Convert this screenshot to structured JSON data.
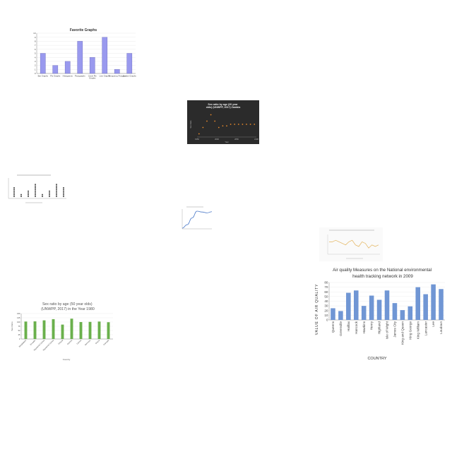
{
  "chart_data": [
    {
      "type": "bar",
      "title": "Favorite Graphs",
      "categories": [
        "Bar Graphs",
        "Pie Graphs",
        "Histograms",
        "Pictographs",
        "Circle Pie Graphs",
        "Line Graphs",
        "Frequency Polygon",
        "Scatter Graphs"
      ],
      "values": [
        5,
        2,
        3,
        8,
        4,
        9,
        1,
        5
      ],
      "ylim": [
        0,
        10
      ],
      "yticks": [
        "0",
        "1",
        "2",
        "3",
        "4",
        "5",
        "6",
        "7",
        "8",
        "9",
        "10"
      ],
      "color": "#9999ee"
    },
    {
      "type": "scatter",
      "title": "Sex ratio by age (20 year olds) (UNWPP, 2017) Zambia",
      "xlabel": "Year",
      "ylabel": "Sex Ratio",
      "x": [
        1955,
        1965,
        1975,
        1985,
        1995,
        2005,
        2015,
        2025,
        2035,
        2045,
        2055,
        2065,
        2075,
        2085,
        2095
      ],
      "values": [
        96,
        100,
        104,
        108,
        104,
        100,
        101,
        101,
        102,
        102,
        102,
        102,
        102,
        102,
        102
      ],
      "xticks": [
        "1950",
        "2000",
        "2050",
        "2100"
      ],
      "background": "#2b2b2b",
      "color": "#e8892b"
    },
    {
      "type": "scatter",
      "categories": [
        "c1",
        "c2",
        "c3",
        "c4",
        "c5",
        "c6",
        "c7",
        "c8"
      ],
      "values": [
        3,
        1,
        2,
        4,
        1,
        2,
        4,
        3
      ],
      "color": "#444444"
    },
    {
      "type": "line",
      "values": [
        0.0,
        0.2,
        0.6,
        1.0,
        0.95,
        0.9,
        0.97
      ],
      "color": "#4a78c8"
    },
    {
      "type": "line",
      "values": [
        50,
        50,
        51,
        50,
        49,
        48,
        50,
        51,
        48,
        47,
        50,
        49,
        46,
        48,
        47,
        48
      ],
      "color": "#e3b35a"
    },
    {
      "type": "bar",
      "title": "Air quality Measures on the National environmental health tracking network in 2009",
      "xlabel": "COUNTRY",
      "ylabel": "VALUE OF AIR QUALITY",
      "categories": [
        "Queens",
        "Greenville",
        "Halifax",
        "Hancock",
        "Hawkins",
        "Henry",
        "Highland",
        "Isle of Wight",
        "James City",
        "King and Queen",
        "King George",
        "King William",
        "Lancaster",
        "Lee",
        "Loudoun"
      ],
      "values": [
        25,
        19,
        58,
        63,
        30,
        52,
        43,
        63,
        36,
        21,
        29,
        70,
        55,
        76,
        66
      ],
      "ylim": [
        0,
        80
      ],
      "yticks": [
        "0",
        "10",
        "20",
        "30",
        "40",
        "50",
        "60",
        "70",
        "80"
      ],
      "color": "#7096d4"
    },
    {
      "type": "bar",
      "title": "Sex ratio by age (50 year olds) (UNWPP, 2017) in the Year 1980",
      "xlabel": "Country",
      "ylabel": "Sex Ratio",
      "categories": [
        "Bangladesh",
        "Ecuador",
        "Equatorial Guinea",
        "Equatorial Guinea",
        "Finland",
        "Gambia",
        "Guinea",
        "Germany",
        "Ghana",
        "Grenada"
      ],
      "values": [
        103,
        104,
        110,
        117,
        85,
        120,
        100,
        101,
        103,
        99
      ],
      "ylim": [
        0,
        150
      ],
      "yticks": [
        "0",
        "25",
        "50",
        "75",
        "100",
        "125",
        "150"
      ],
      "color": "#6ab04c"
    }
  ]
}
